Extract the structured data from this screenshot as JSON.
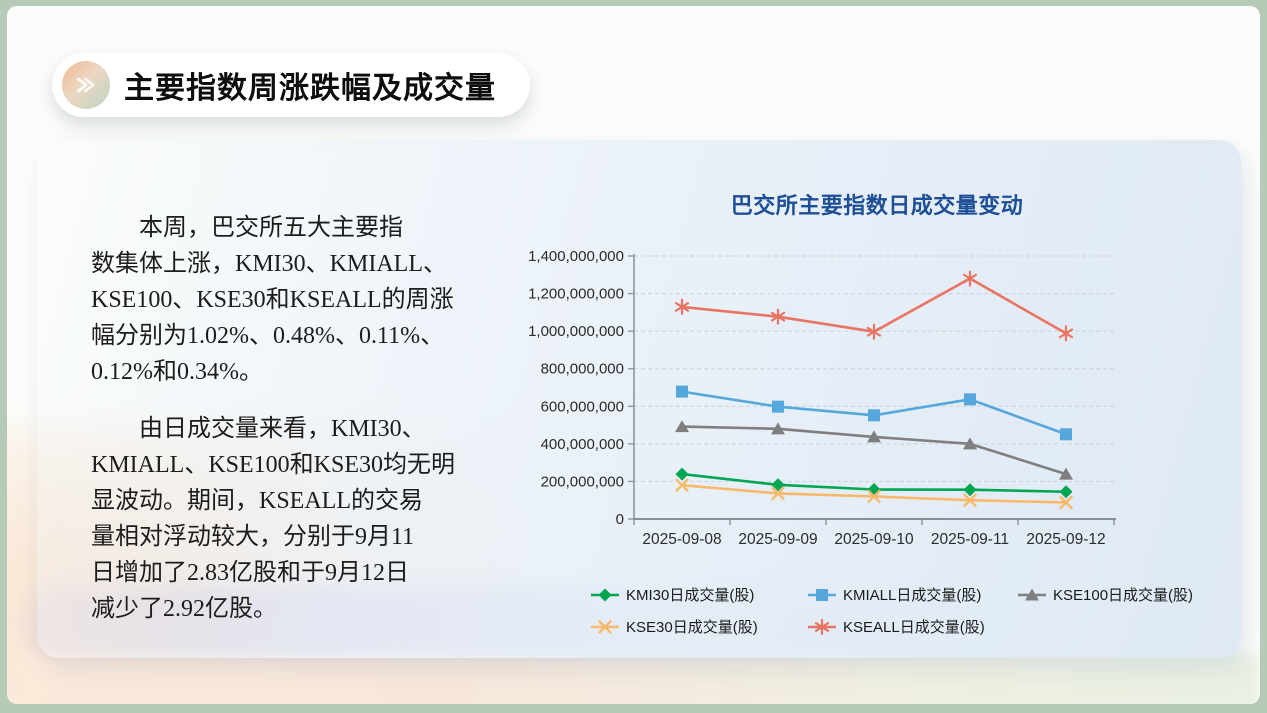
{
  "slide": {
    "title": "主要指数周涨跌幅及成交量",
    "paragraphs": [
      "本周，巴交所五大主要指\n数集体上涨，KMI30、KMIALL、\nKSE100、KSE30和KSEALL的周涨\n幅分别为1.02%、0.48%、0.11%、\n0.12%和0.34%。",
      "由日成交量来看，KMI30、\nKMIALL、KSE100和KSE30均无明\n显波动。期间，KSEALL的交易\n量相对浮动较大，分别于9月11\n日增加了2.83亿股和于9月12日\n减少了2.92亿股。"
    ]
  },
  "chart_data": {
    "type": "line",
    "title": "巴交所主要指数日成交量变动",
    "title_color": "#1d4e96",
    "categories": [
      "2025-09-08",
      "2025-09-09",
      "2025-09-10",
      "2025-09-11",
      "2025-09-12"
    ],
    "series": [
      {
        "name": "KMI30日成交量(股)",
        "marker": "diamond",
        "color": "#00A651",
        "values": [
          239000000,
          182000000,
          157000000,
          156000000,
          145000000
        ]
      },
      {
        "name": "KMIALL日成交量(股)",
        "marker": "square",
        "color": "#56A7DC",
        "values": [
          678000000,
          598000000,
          552000000,
          637000000,
          451000000
        ]
      },
      {
        "name": "KSE100日成交量(股)",
        "marker": "triangle",
        "color": "#7F7F7F",
        "values": [
          492000000,
          480000000,
          437000000,
          400000000,
          239000000
        ]
      },
      {
        "name": "KSE30日成交量(股)",
        "marker": "x",
        "color": "#F9B96B",
        "values": [
          180000000,
          136000000,
          120000000,
          100000000,
          88000000
        ]
      },
      {
        "name": "KSEALL日成交量(股)",
        "marker": "asterisk",
        "color": "#E87461",
        "values": [
          1129000000,
          1077000000,
          997000000,
          1280000000,
          988000000
        ]
      }
    ],
    "ylim": [
      0,
      1400000000
    ],
    "ytick_step": 200000000,
    "grid": "dashed-horizontal",
    "legend_position": "bottom"
  },
  "colors": {
    "frame": "#b5cbb7",
    "panel_blue": "#dfe9f4",
    "axis": "#8f979e",
    "gridline": "#c9d2da",
    "chart_title": "#1d4e96"
  }
}
